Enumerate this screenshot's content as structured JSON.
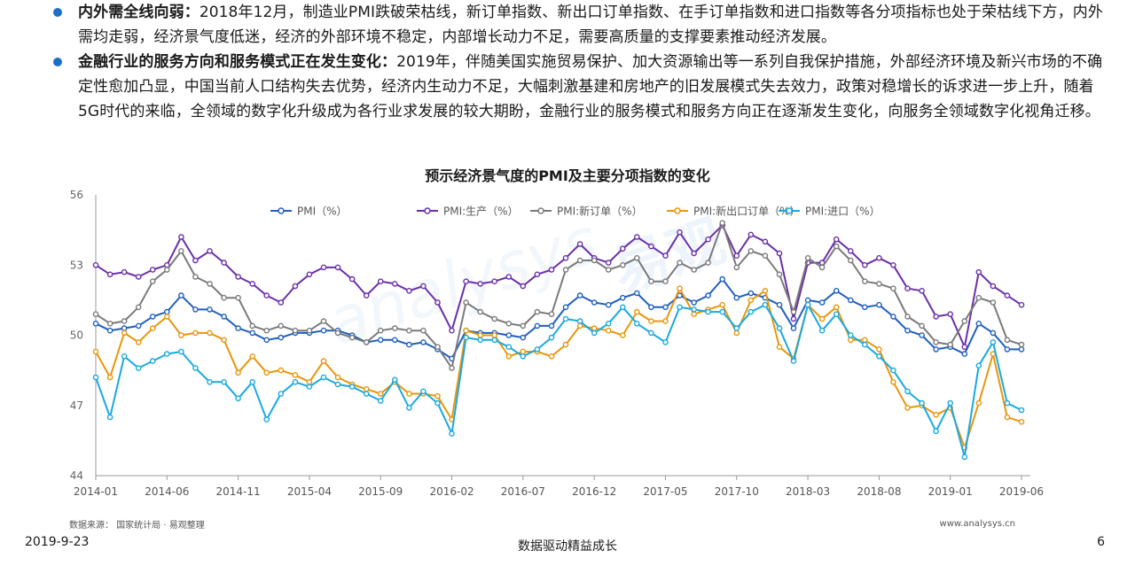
{
  "bullets": [
    {
      "lead": "内外需全线向弱：",
      "text": "2018年12月，制造业PMI跌破荣枯线，新订单指数、新出口订单指数、在手订单指数和进口指数等各分项指标也处于荣枯线下方，内外需均走弱，经济景气度低迷，经济的外部环境不稳定，内部增长动力不足，需要高质量的支撑要素推动经济发展。"
    },
    {
      "lead": "金融行业的服务方向和服务模式正在发生变化：",
      "text": "2019年，伴随美国实施贸易保护、加大资源输出等一系列自我保护措施，外部经济环境及新兴市场的不确定性愈加凸显，中国当前人口结构失去优势，经济内生动力不足，大幅刺激基建和房地产的旧发展模式失去效力，政策对稳增长的诉求进一步上升，随着5G时代的来临，全领域的数字化升级成为各行业求发展的较大期盼，金融行业的服务模式和服务方向正在逐渐发生变化，向服务全领域数字化视角迁移。"
    }
  ],
  "chart_data": {
    "type": "line",
    "title": "预示经济景气度的PMI及主要分项指数的变化",
    "xlabel": "",
    "ylabel": "",
    "ylim": [
      44,
      56
    ],
    "yticks": [
      "44",
      "47",
      "50",
      "53",
      "56"
    ],
    "grid": false,
    "legend_position": "top-center",
    "x_tick_labels": [
      "2014-01",
      "2014-06",
      "2014-11",
      "2015-04",
      "2015-09",
      "2016-02",
      "2016-07",
      "2016-12",
      "2017-05",
      "2017-10",
      "2018-03",
      "2018-08",
      "2019-01",
      "2019-06"
    ],
    "x": [
      "2014-01",
      "2014-02",
      "2014-03",
      "2014-04",
      "2014-05",
      "2014-06",
      "2014-07",
      "2014-08",
      "2014-09",
      "2014-10",
      "2014-11",
      "2014-12",
      "2015-01",
      "2015-02",
      "2015-03",
      "2015-04",
      "2015-05",
      "2015-06",
      "2015-07",
      "2015-08",
      "2015-09",
      "2015-10",
      "2015-11",
      "2015-12",
      "2016-01",
      "2016-02",
      "2016-03",
      "2016-04",
      "2016-05",
      "2016-06",
      "2016-07",
      "2016-08",
      "2016-09",
      "2016-10",
      "2016-11",
      "2016-12",
      "2017-01",
      "2017-02",
      "2017-03",
      "2017-04",
      "2017-05",
      "2017-06",
      "2017-07",
      "2017-08",
      "2017-09",
      "2017-10",
      "2017-11",
      "2017-12",
      "2018-01",
      "2018-02",
      "2018-03",
      "2018-04",
      "2018-05",
      "2018-06",
      "2018-07",
      "2018-08",
      "2018-09",
      "2018-10",
      "2018-11",
      "2018-12",
      "2019-01",
      "2019-02",
      "2019-03",
      "2019-04",
      "2019-05",
      "2019-06"
    ],
    "series": [
      {
        "name": "PMI（%）",
        "color": "#1f5fbf",
        "values": [
          50.5,
          50.2,
          50.3,
          50.4,
          50.8,
          51.0,
          51.7,
          51.1,
          51.1,
          50.8,
          50.3,
          50.1,
          49.8,
          49.9,
          50.1,
          50.1,
          50.2,
          50.2,
          50.0,
          49.7,
          49.8,
          49.8,
          49.6,
          49.7,
          49.4,
          49.0,
          50.2,
          50.1,
          50.1,
          50.0,
          49.9,
          50.4,
          50.4,
          51.2,
          51.7,
          51.4,
          51.3,
          51.6,
          51.8,
          51.2,
          51.2,
          51.7,
          51.4,
          51.7,
          52.4,
          51.6,
          51.8,
          51.6,
          51.3,
          50.3,
          51.5,
          51.4,
          51.9,
          51.5,
          51.2,
          51.3,
          50.8,
          50.2,
          50.0,
          49.4,
          49.5,
          49.2,
          50.5,
          50.1,
          49.4,
          49.4
        ]
      },
      {
        "name": "PMI:生产（%）",
        "color": "#6a2fa8",
        "values": [
          53.0,
          52.6,
          52.7,
          52.5,
          52.8,
          53.0,
          54.2,
          53.2,
          53.6,
          53.1,
          52.5,
          52.2,
          51.7,
          51.4,
          52.1,
          52.6,
          52.9,
          52.9,
          52.4,
          51.7,
          52.3,
          52.2,
          51.9,
          52.1,
          51.4,
          50.2,
          52.3,
          52.2,
          52.3,
          52.5,
          52.1,
          52.6,
          52.8,
          53.3,
          53.9,
          53.3,
          53.1,
          53.7,
          54.2,
          53.8,
          53.4,
          54.4,
          53.5,
          54.1,
          54.7,
          53.4,
          54.3,
          54.0,
          53.5,
          50.7,
          53.1,
          53.1,
          54.1,
          53.6,
          53.0,
          53.3,
          53.0,
          52.0,
          51.9,
          50.8,
          50.9,
          49.5,
          52.7,
          52.1,
          51.7,
          51.3
        ]
      },
      {
        "name": "PMI:新订单（%）",
        "color": "#7a7a7a",
        "values": [
          50.9,
          50.5,
          50.6,
          51.2,
          52.3,
          52.8,
          53.6,
          52.5,
          52.2,
          51.6,
          51.6,
          50.4,
          50.2,
          50.4,
          50.2,
          50.2,
          50.6,
          50.1,
          49.9,
          49.7,
          50.2,
          50.3,
          50.2,
          50.2,
          49.5,
          48.6,
          51.4,
          51.0,
          50.7,
          50.5,
          50.4,
          51.0,
          50.9,
          52.8,
          53.2,
          53.2,
          52.8,
          53.0,
          53.3,
          52.3,
          52.3,
          53.1,
          52.8,
          53.1,
          54.8,
          52.9,
          53.6,
          53.4,
          52.6,
          51.0,
          53.3,
          52.9,
          53.8,
          53.2,
          52.3,
          52.2,
          52.0,
          50.8,
          50.4,
          49.7,
          49.6,
          50.6,
          51.6,
          51.4,
          49.8,
          49.6
        ]
      },
      {
        "name": "PMI:新出口订单（%）",
        "color": "#e8960a",
        "values": [
          49.3,
          48.2,
          50.1,
          49.7,
          50.3,
          50.8,
          50.0,
          50.1,
          50.1,
          49.8,
          48.4,
          49.1,
          48.4,
          48.5,
          48.3,
          48.0,
          48.9,
          48.2,
          47.9,
          47.7,
          47.5,
          48.0,
          47.5,
          47.5,
          47.4,
          46.4,
          50.2,
          50.0,
          50.0,
          49.1,
          49.3,
          49.3,
          49.1,
          49.6,
          50.4,
          50.3,
          50.2,
          50.0,
          51.0,
          50.6,
          50.6,
          52.0,
          50.9,
          51.1,
          51.3,
          50.1,
          51.5,
          51.9,
          49.5,
          49.0,
          51.3,
          50.7,
          51.2,
          49.8,
          49.8,
          49.4,
          48.0,
          46.9,
          47.0,
          46.6,
          46.9,
          45.2,
          47.1,
          49.2,
          46.5,
          46.3
        ]
      },
      {
        "name": "PMI:进口（%）",
        "color": "#19a9e0",
        "values": [
          48.2,
          46.5,
          49.1,
          48.6,
          48.9,
          49.2,
          49.3,
          48.6,
          48.0,
          48.0,
          47.3,
          48.0,
          46.4,
          47.5,
          48.0,
          47.8,
          48.2,
          47.9,
          47.8,
          47.5,
          47.2,
          48.1,
          46.9,
          47.6,
          47.1,
          45.8,
          49.9,
          49.8,
          49.8,
          49.5,
          49.1,
          49.4,
          49.9,
          50.7,
          50.6,
          50.1,
          50.5,
          51.2,
          50.5,
          50.1,
          49.7,
          51.2,
          51.1,
          51.0,
          51.0,
          50.3,
          51.0,
          51.3,
          50.3,
          48.9,
          51.3,
          50.2,
          50.9,
          50.0,
          49.6,
          49.1,
          48.5,
          47.6,
          47.1,
          45.9,
          47.1,
          44.8,
          48.7,
          49.7,
          47.1,
          46.8
        ]
      }
    ],
    "watermark": "易观 analysys 你要的数据分析",
    "source_note": "数据来源： 国家统计局 · 易观整理",
    "site": "www.analysys.cn"
  },
  "footer": {
    "date": "2019-9-23",
    "slogan": "数据驱动精益成长",
    "page": "6"
  }
}
